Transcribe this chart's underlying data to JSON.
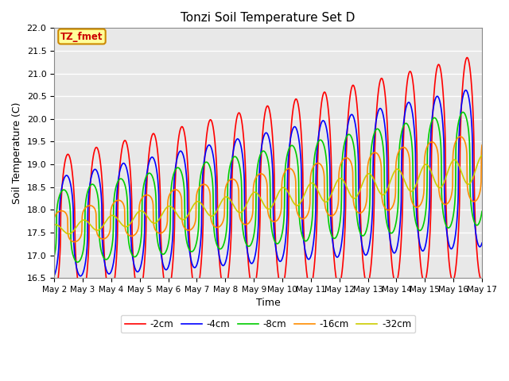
{
  "title": "Tonzi Soil Temperature Set D",
  "xlabel": "Time",
  "ylabel": "Soil Temperature (C)",
  "ylim": [
    16.5,
    22.0
  ],
  "xlim": [
    0,
    15
  ],
  "xtick_labels": [
    "May 2",
    "May 3",
    "May 4",
    "May 5",
    "May 6",
    "May 7",
    "May 8",
    "May 9",
    "May 10",
    "May 11",
    "May 12",
    "May 13",
    "May 14",
    "May 15",
    "May 16",
    "May 17"
  ],
  "xtick_positions": [
    0,
    1,
    2,
    3,
    4,
    5,
    6,
    7,
    8,
    9,
    10,
    11,
    12,
    13,
    14,
    15
  ],
  "legend_labels": [
    "-2cm",
    "-4cm",
    "-8cm",
    "-16cm",
    "-32cm"
  ],
  "legend_colors": [
    "#ff0000",
    "#0000ff",
    "#00cc00",
    "#ff8c00",
    "#cccc00"
  ],
  "bg_color": "#e8e8e8",
  "annotation_text": "TZ_fmet",
  "annotation_bg": "#ffff99",
  "annotation_border": "#cc8800"
}
